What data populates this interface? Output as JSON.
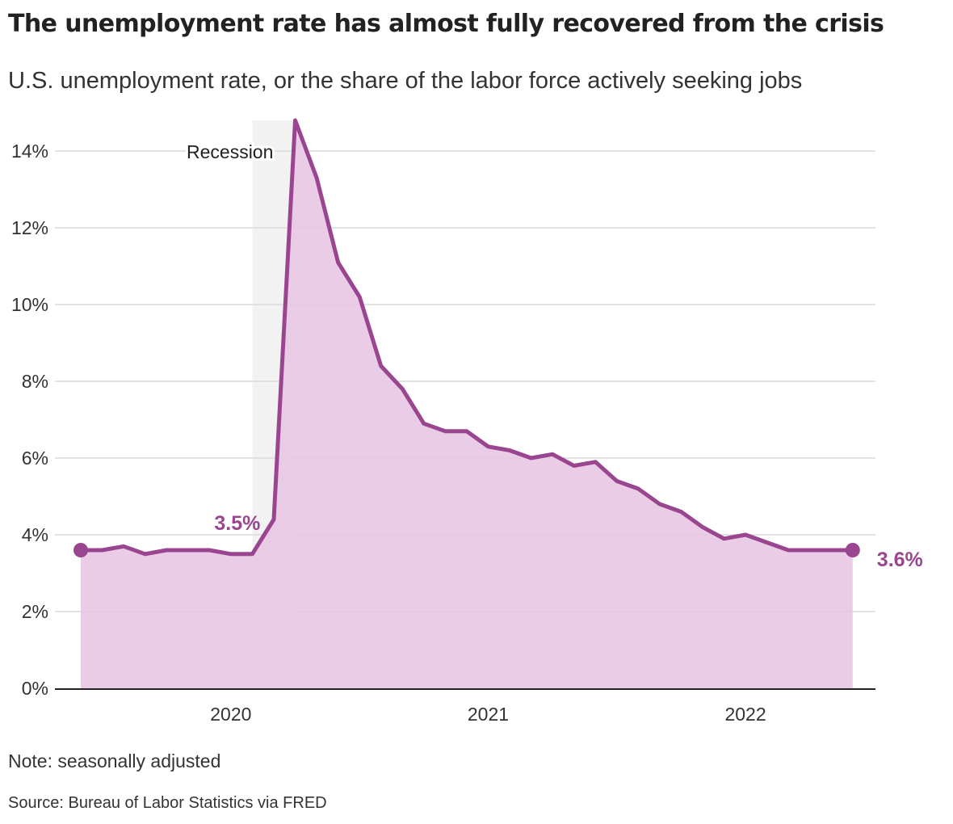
{
  "title": "The unemployment rate has almost fully recovered from the crisis",
  "subtitle": "U.S. unemployment rate, or the share of the labor force actively seeking jobs",
  "note": "Note: seasonally adjusted",
  "source": "Source: Bureau of Labor Statistics via FRED",
  "colors": {
    "line": "#9a4590",
    "area": "#e8c5e4",
    "recession": "#f2f2f2",
    "grid": "#d9d9d9",
    "axis": "#222222"
  },
  "chart_data": {
    "type": "area",
    "x": [
      "2019-06",
      "2019-07",
      "2019-08",
      "2019-09",
      "2019-10",
      "2019-11",
      "2019-12",
      "2020-01",
      "2020-02",
      "2020-03",
      "2020-04",
      "2020-05",
      "2020-06",
      "2020-07",
      "2020-08",
      "2020-09",
      "2020-10",
      "2020-11",
      "2020-12",
      "2021-01",
      "2021-02",
      "2021-03",
      "2021-04",
      "2021-05",
      "2021-06",
      "2021-07",
      "2021-08",
      "2021-09",
      "2021-10",
      "2021-11",
      "2021-12",
      "2022-01",
      "2022-02",
      "2022-03",
      "2022-04",
      "2022-05",
      "2022-06"
    ],
    "series": [
      {
        "values": [
          3.6,
          3.6,
          3.7,
          3.5,
          3.6,
          3.6,
          3.6,
          3.5,
          3.5,
          4.4,
          14.8,
          13.3,
          11.1,
          10.2,
          8.4,
          7.8,
          6.9,
          6.7,
          6.7,
          6.3,
          6.2,
          6.0,
          6.1,
          5.8,
          5.9,
          5.4,
          5.2,
          4.8,
          4.6,
          4.2,
          3.9,
          4.0,
          3.8,
          3.6,
          3.6,
          3.6,
          3.6
        ]
      }
    ],
    "ylim": [
      0,
      14.8
    ],
    "yticks": [
      0,
      2,
      4,
      6,
      8,
      10,
      12,
      14
    ],
    "ytick_labels": [
      "0%",
      "2%",
      "4%",
      "6%",
      "8%",
      "10%",
      "12%",
      "14%"
    ],
    "xtick_labels": [
      {
        "date": "2020-01",
        "label": "2020"
      },
      {
        "date": "2021-01",
        "label": "2021"
      },
      {
        "date": "2022-01",
        "label": "2022"
      }
    ],
    "recession": {
      "start": "2020-02",
      "end": "2020-04",
      "label": "Recession"
    },
    "annotations": [
      {
        "date": "2020-02",
        "value": 3.5,
        "label": "3.5%"
      },
      {
        "date": "2022-06",
        "value": 3.6,
        "label": "3.6%"
      }
    ],
    "grid": true
  }
}
